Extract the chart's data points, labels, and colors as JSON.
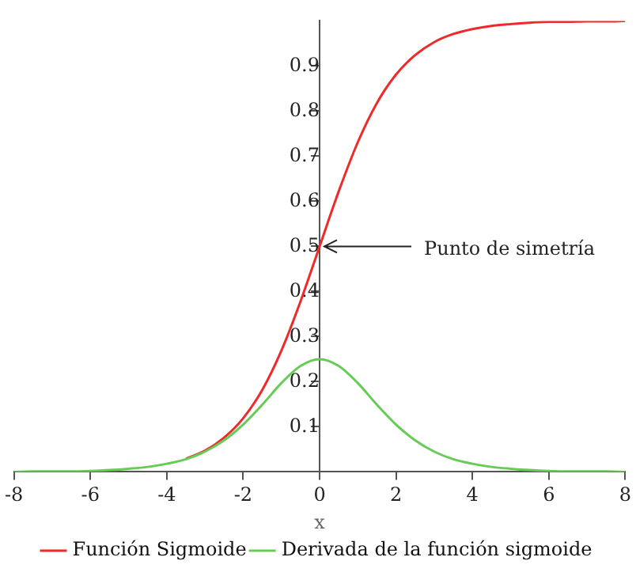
{
  "chart_data": {
    "type": "line",
    "xlabel": "x",
    "x": [
      -8,
      -7.5,
      -7,
      -6.5,
      -6,
      -5.5,
      -5,
      -4.5,
      -4,
      -3.5,
      -3,
      -2.5,
      -2,
      -1.5,
      -1,
      -0.5,
      0,
      0.5,
      1,
      1.5,
      2,
      2.5,
      3,
      3.5,
      4,
      4.5,
      5,
      5.5,
      6,
      6.5,
      7,
      7.5,
      8
    ],
    "series": [
      {
        "name": "Función Sigmoide",
        "color": "#ee2a2a",
        "values": [
          null,
          null,
          null,
          null,
          null,
          null,
          null,
          null,
          null,
          0.029,
          0.047,
          0.076,
          0.119,
          0.182,
          0.269,
          0.378,
          0.5,
          0.622,
          0.731,
          0.818,
          0.881,
          0.924,
          0.953,
          0.971,
          0.982,
          0.989,
          0.993,
          0.996,
          0.998,
          0.998,
          0.999,
          0.999,
          1.0
        ]
      },
      {
        "name": "Derivada de la función sigmoide",
        "color": "#66cc55",
        "values": [
          0,
          0.001,
          0.001,
          0.001,
          0.002,
          0.004,
          0.007,
          0.011,
          0.018,
          0.028,
          0.045,
          0.07,
          0.105,
          0.149,
          0.197,
          0.235,
          0.25,
          0.235,
          0.197,
          0.149,
          0.105,
          0.07,
          0.045,
          0.028,
          0.018,
          0.011,
          0.007,
          0.004,
          0.002,
          0.001,
          0.001,
          0.001,
          0
        ]
      }
    ],
    "xlim": [
      -8,
      8
    ],
    "xticks": [
      -8,
      -6,
      -4,
      -2,
      0,
      2,
      4,
      6,
      8
    ],
    "ylim": [
      0,
      1
    ],
    "yticks": [
      0.1,
      0.2,
      0.3,
      0.4,
      0.5,
      0.6,
      0.7,
      0.8,
      0.9
    ],
    "annotations": [
      {
        "text": "Punto de simetría",
        "x": 0,
        "y": 0.5
      }
    ],
    "grid": false,
    "legend": "bottom",
    "marker": "none",
    "line_style": "solid"
  }
}
